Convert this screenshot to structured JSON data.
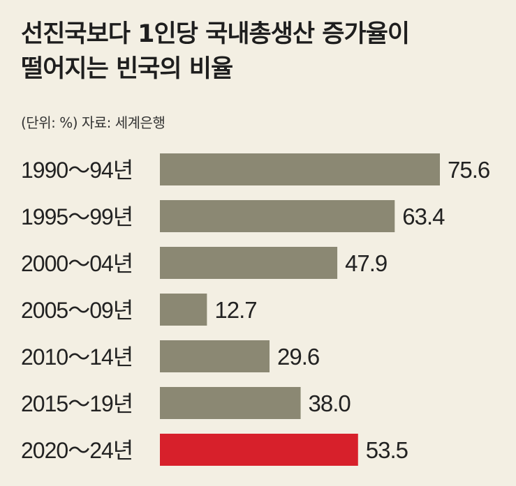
{
  "chart_data": {
    "type": "bar",
    "orientation": "horizontal",
    "title_line1": "선진국보다 1인당 국내총생산 증가율이",
    "title_line2": "떨어지는 빈국의 비율",
    "subtitle": "(단위: %) 자료: 세계은행",
    "categories": [
      "1990～94년",
      "1995～99년",
      "2000～04년",
      "2005～09년",
      "2010～14년",
      "2015～19년",
      "2020～24년"
    ],
    "values": [
      75.6,
      63.4,
      47.9,
      12.7,
      29.6,
      38.0,
      53.5
    ],
    "value_labels": [
      "75.6",
      "63.4",
      "47.9",
      "12.7",
      "29.6",
      "38.0",
      "53.5"
    ],
    "highlight_index": 6,
    "colors": {
      "bar": "#8b8873",
      "highlight": "#d7202b",
      "highlight_text": "#d7202b",
      "text": "#222222"
    },
    "xlim": [
      0,
      75.6
    ],
    "grid": false,
    "legend": "none"
  }
}
